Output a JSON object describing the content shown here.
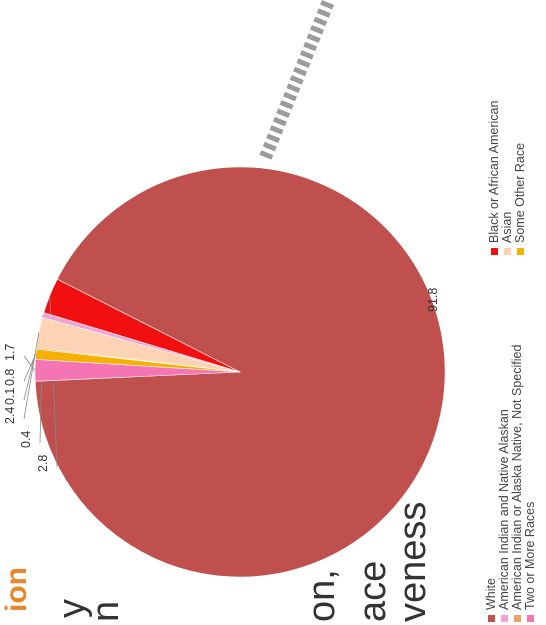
{
  "slide": {
    "title_fragment": "ion",
    "body_fragments": [
      "y",
      "n",
      "on,",
      "ace",
      "veness"
    ]
  },
  "chart_data": {
    "type": "pie",
    "title": "",
    "slices": [
      {
        "label": "White",
        "value": 91.8,
        "color": "#c0504d"
      },
      {
        "label": "Black or African American",
        "value": 2.8,
        "color": "#f20f0f"
      },
      {
        "label": "American Indian and Native Alaskan",
        "value": 0.4,
        "color": "#f2a2d8"
      },
      {
        "label": "Asian",
        "value": 2.4,
        "color": "#fdd3b3"
      },
      {
        "label": "American Indian or Alaska Native, Not Specified",
        "value": 0.1,
        "color": "#f0a060"
      },
      {
        "label": "Some Other Race",
        "value": 0.8,
        "color": "#f6b000"
      },
      {
        "label": "Two or More Races",
        "value": 1.7,
        "color": "#f474b4"
      }
    ],
    "data_labels": [
      "91.8",
      "2.8",
      "0.4",
      "2.4",
      "0.1",
      "0.8",
      "1.7"
    ],
    "legend": {
      "placement": "right",
      "entries": [
        "White",
        "American Indian and Native Alaskan",
        "American Indian or Alaska Native, Not Specified",
        "Two or More Races",
        "Black or African American",
        "Asian",
        "Some Other Race"
      ]
    }
  }
}
